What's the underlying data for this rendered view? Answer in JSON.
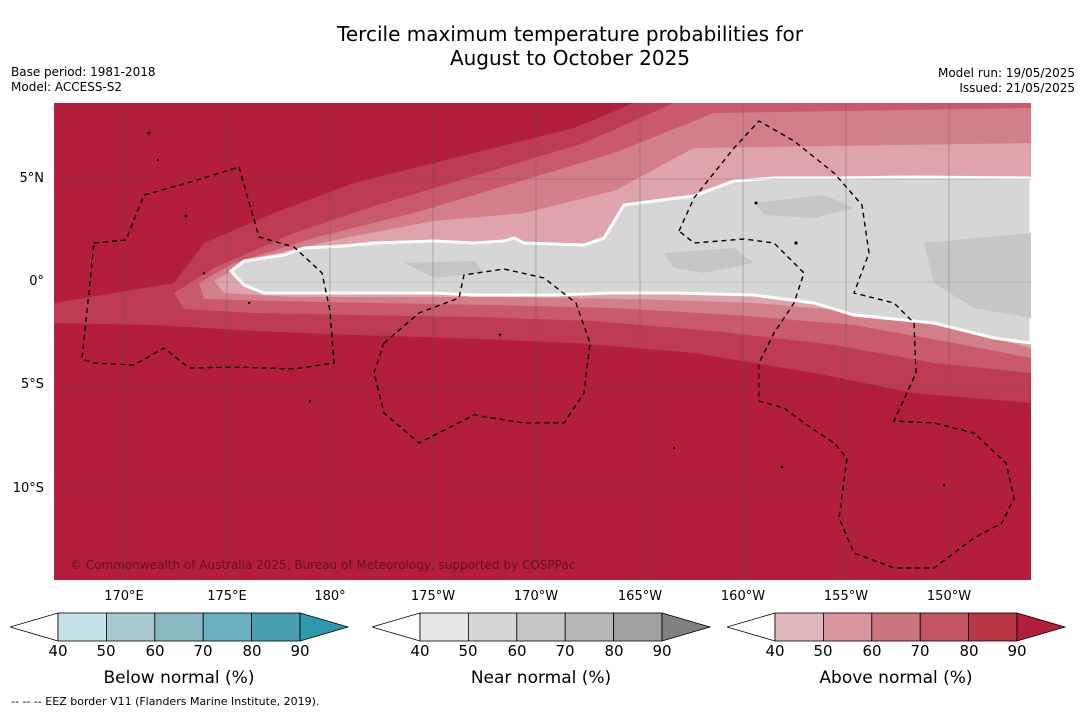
{
  "title": {
    "line1": "Tercile maximum temperature probabilities for",
    "line2": "August to October 2025"
  },
  "meta_left": {
    "base_period": "Base period: 1981-2018",
    "model": "Model: ACCESS-S2"
  },
  "meta_right": {
    "model_run": "Model run: 19/05/2025",
    "issued": "Issued: 21/05/2025"
  },
  "map": {
    "lat_labels": [
      "5°N",
      "0°",
      "5°S",
      "10°S"
    ],
    "lon_labels": [
      "170°E",
      "175°E",
      "180°",
      "175°W",
      "170°W",
      "165°W",
      "160°W",
      "155°W",
      "150°W"
    ],
    "copyright": "© Commonwealth of Australia 2025, Bureau of Meteorology, supported by COSPPac",
    "colors": {
      "above_90": "#b21e3b",
      "above_80": "#bd3c52",
      "above_70": "#c85a6b",
      "above_60": "#d37f8a",
      "above_50": "#dea3ab",
      "near_normal": "#d6d6d6",
      "near_normal_dark": "#c6c6c6",
      "eez_border": "#000000"
    }
  },
  "colorbars": [
    {
      "title": "Below normal (%)",
      "ticks": [
        "40",
        "50",
        "60",
        "70",
        "80",
        "90"
      ],
      "colors": [
        "#ffffff",
        "#c8e2ea",
        "#a8c9d0",
        "#8ab9c4",
        "#6aafbd",
        "#4aa0b0",
        "#2f98ac"
      ]
    },
    {
      "title": "Near normal (%)",
      "ticks": [
        "40",
        "50",
        "60",
        "70",
        "80",
        "90"
      ],
      "colors": [
        "#ffffff",
        "#e6e6e6",
        "#d6d6d6",
        "#c6c6c6",
        "#b6b6b6",
        "#a0a0a0",
        "#808080"
      ]
    },
    {
      "title": "Above normal (%)",
      "ticks": [
        "40",
        "50",
        "60",
        "70",
        "80",
        "90"
      ],
      "colors": [
        "#ffffff",
        "#dfb7bc",
        "#d9959d",
        "#cc747e",
        "#c35563",
        "#b93647",
        "#b21e3b"
      ]
    }
  ],
  "footnote": "--  --  -- EEZ border V11 (Flanders Marine Institute, 2019)."
}
